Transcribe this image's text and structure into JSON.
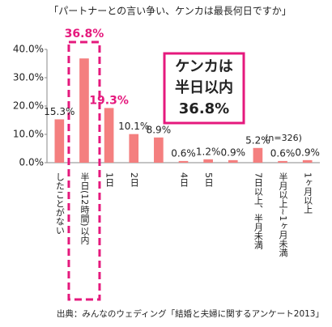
{
  "chart_data": {
    "type": "bar",
    "title": "「パートナーとの言い争い、ケンカは最長何日ですか」",
    "categories": [
      "したことがない",
      "半日(12時間)以内",
      "1日",
      "2日",
      null,
      "4日",
      "5日",
      null,
      "7日以上、半月未満",
      "半月以上~1ヶ月未満",
      "1ヶ月以上"
    ],
    "values": [
      15.3,
      36.8,
      19.3,
      10.1,
      8.9,
      0.6,
      1.2,
      0.9,
      5.2,
      0.6,
      0.9
    ],
    "value_labels": [
      "15.3%",
      "36.8%",
      "19.3%",
      "10.1%",
      "8.9%",
      "0.6%",
      "1.2%",
      "0.9%",
      "5.2%",
      "0.6%",
      "0.9%"
    ],
    "color": "#f47f7f",
    "highlight": [
      1,
      2
    ],
    "highlight_color": "#e5197d",
    "ylim": [
      0,
      40
    ],
    "yticks": [
      {
        "value": 0,
        "label": "0.0%"
      },
      {
        "value": 10,
        "label": "10.0%"
      },
      {
        "value": 20,
        "label": "20.0%"
      },
      {
        "value": 30,
        "label": "30.0%"
      },
      {
        "value": 40,
        "label": "40.0%"
      }
    ],
    "grid": false,
    "annotation": [
      "ケンカは",
      "半日以内",
      "36.8%"
    ],
    "note": "(n=326)",
    "source": "出典：みんなのウェディング「結婚と夫婦に関するアンケート2013」"
  }
}
